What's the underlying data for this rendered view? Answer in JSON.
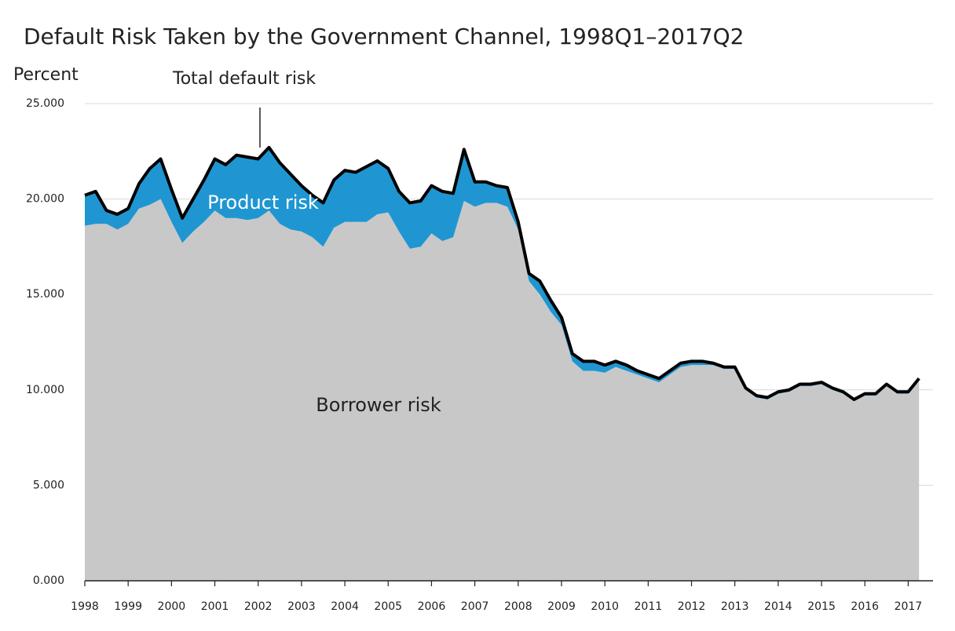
{
  "chart_data": {
    "type": "stacked_area",
    "title": "Default Risk Taken by the Government Channel, 1998Q1–2017Q2",
    "y_label": "Percent",
    "annotation": "Total default risk",
    "x": [
      1998,
      1998.25,
      1998.5,
      1998.75,
      1999,
      1999.25,
      1999.5,
      1999.75,
      2000,
      2000.25,
      2000.5,
      2000.75,
      2001,
      2001.25,
      2001.5,
      2001.75,
      2002,
      2002.25,
      2002.5,
      2002.75,
      2003,
      2003.25,
      2003.5,
      2003.75,
      2004,
      2004.25,
      2004.5,
      2004.75,
      2005,
      2005.25,
      2005.5,
      2005.75,
      2006,
      2006.25,
      2006.5,
      2006.75,
      2007,
      2007.25,
      2007.5,
      2007.75,
      2008,
      2008.25,
      2008.5,
      2008.75,
      2009,
      2009.25,
      2009.5,
      2009.75,
      2010,
      2010.25,
      2010.5,
      2010.75,
      2011,
      2011.25,
      2011.5,
      2011.75,
      2012,
      2012.25,
      2012.5,
      2012.75,
      2013,
      2013.25,
      2013.5,
      2013.75,
      2014,
      2014.25,
      2014.5,
      2014.75,
      2015,
      2015.25,
      2015.5,
      2015.75,
      2016,
      2016.25,
      2016.5,
      2016.75,
      2017,
      2017.25
    ],
    "series": [
      {
        "name": "Borrower risk",
        "color": "#c8c8c8",
        "values": [
          18.6,
          18.7,
          18.7,
          18.4,
          18.7,
          19.5,
          19.7,
          20.0,
          18.8,
          17.7,
          18.3,
          18.8,
          19.4,
          19.0,
          19.0,
          18.9,
          19.0,
          19.4,
          18.7,
          18.4,
          18.3,
          18.0,
          17.5,
          18.5,
          18.8,
          18.8,
          18.8,
          19.2,
          19.3,
          18.3,
          17.4,
          17.5,
          18.2,
          17.8,
          18.0,
          19.9,
          19.6,
          19.8,
          19.8,
          19.6,
          18.4,
          15.7,
          15.0,
          14.1,
          13.4,
          11.5,
          11.0,
          11.0,
          10.9,
          11.2,
          11.0,
          10.8,
          10.6,
          10.4,
          10.8,
          11.2,
          11.3,
          11.3,
          11.3,
          11.1,
          11.1,
          10.0,
          9.6,
          9.5,
          9.8,
          9.9,
          10.2,
          10.2,
          10.3,
          10.0,
          9.8,
          9.4,
          9.7,
          9.7,
          10.2,
          9.8,
          9.8,
          10.5
        ]
      },
      {
        "name": "Product risk",
        "color": "#1f96d2",
        "values": [
          1.6,
          1.7,
          0.7,
          0.8,
          0.8,
          1.3,
          1.9,
          2.1,
          1.7,
          1.3,
          1.7,
          2.2,
          2.7,
          2.8,
          3.3,
          3.3,
          3.1,
          3.3,
          3.2,
          2.9,
          2.4,
          2.2,
          2.3,
          2.5,
          2.7,
          2.6,
          2.9,
          2.8,
          2.3,
          2.1,
          2.4,
          2.4,
          2.5,
          2.6,
          2.3,
          2.7,
          1.3,
          1.1,
          0.9,
          1.0,
          0.4,
          0.4,
          0.7,
          0.6,
          0.4,
          0.4,
          0.5,
          0.5,
          0.4,
          0.3,
          0.3,
          0.2,
          0.2,
          0.2,
          0.2,
          0.2,
          0.2,
          0.2,
          0.1,
          0.1,
          0.1,
          0.1,
          0.1,
          0.1,
          0.1,
          0.1,
          0.1,
          0.1,
          0.1,
          0.1,
          0.1,
          0.1,
          0.1,
          0.1,
          0.1,
          0.1,
          0.1,
          0.1
        ]
      }
    ],
    "total_line_color": "#000000",
    "xlim": [
      1998,
      2017.5
    ],
    "xticks": [
      1998,
      1999,
      2000,
      2001,
      2002,
      2003,
      2004,
      2005,
      2006,
      2007,
      2008,
      2009,
      2010,
      2011,
      2012,
      2013,
      2014,
      2015,
      2016,
      2017
    ],
    "ylim": [
      0,
      25
    ],
    "yticks": [
      {
        "value": 0,
        "label": "0.000"
      },
      {
        "value": 5,
        "label": "5.000"
      },
      {
        "value": 10,
        "label": "10.000"
      },
      {
        "value": 15,
        "label": "15.000"
      },
      {
        "value": 20,
        "label": "20.000"
      },
      {
        "value": 25,
        "label": "25.000"
      }
    ],
    "grid": true
  }
}
